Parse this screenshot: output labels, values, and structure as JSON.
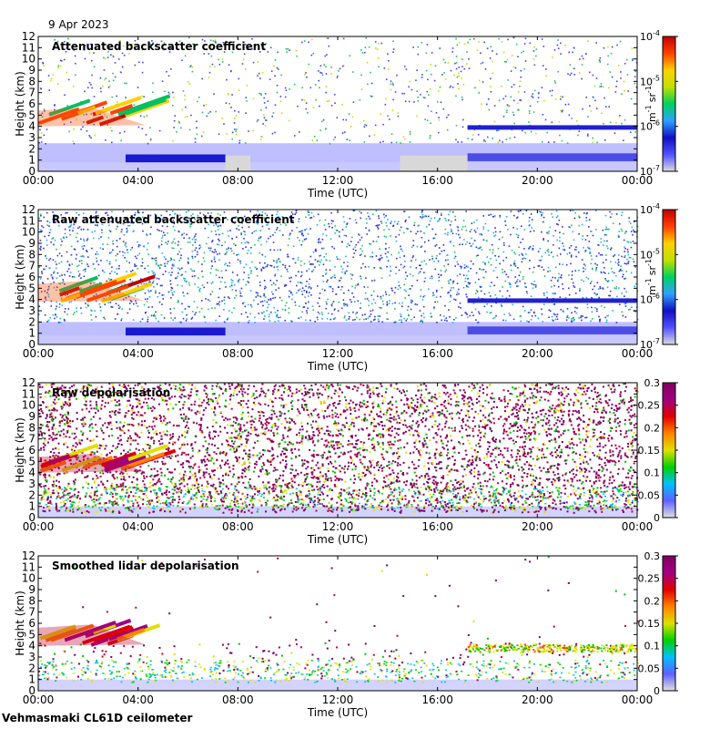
{
  "date_label": "9 Apr 2023",
  "site_label": "Vehmasmaki CL61D ceilometer",
  "chart_data": [
    {
      "type": "heatmap",
      "title": "Attenuated backscatter coefficient",
      "xlabel": "Time (UTC)",
      "ylabel": "Height (km)",
      "x_ticks": [
        "00:00",
        "04:00",
        "08:00",
        "12:00",
        "16:00",
        "20:00",
        "00:00"
      ],
      "y_ticks": [
        "0",
        "1",
        "2",
        "3",
        "4",
        "5",
        "6",
        "7",
        "8",
        "9",
        "10",
        "11",
        "12"
      ],
      "ylim": [
        0,
        12
      ],
      "colorbar": {
        "scale": "log",
        "range": [
          1e-07,
          0.0001
        ],
        "tick_labels": [
          {
            "base": "10",
            "exp": "-7"
          },
          {
            "base": "10",
            "exp": "-6"
          },
          {
            "base": "10",
            "exp": "-5"
          },
          {
            "base": "10",
            "exp": "-4"
          }
        ],
        "unit": {
          "a": "m",
          "ae": "-1",
          "b": "sr",
          "be": "-1"
        }
      },
      "features": {
        "cloud_layer_km": [
          4,
          6
        ],
        "cloud_end_hour": 4.3,
        "boundary_layer_top_km": 2.5,
        "data_gaps_hours": [
          [
            7.5,
            8.5
          ],
          [
            14.5,
            17.2
          ]
        ]
      }
    },
    {
      "type": "heatmap",
      "title": "Raw attenuated backscatter coefficient",
      "xlabel": "Time (UTC)",
      "ylabel": "Height (km)",
      "x_ticks": [
        "00:00",
        "04:00",
        "08:00",
        "12:00",
        "16:00",
        "20:00",
        "00:00"
      ],
      "y_ticks": [
        "0",
        "1",
        "2",
        "3",
        "4",
        "5",
        "6",
        "7",
        "8",
        "9",
        "10",
        "11",
        "12"
      ],
      "ylim": [
        0,
        12
      ],
      "colorbar": {
        "scale": "log",
        "range": [
          1e-07,
          0.0001
        ],
        "tick_labels": [
          {
            "base": "10",
            "exp": "-7"
          },
          {
            "base": "10",
            "exp": "-6"
          },
          {
            "base": "10",
            "exp": "-5"
          },
          {
            "base": "10",
            "exp": "-4"
          }
        ],
        "unit": {
          "a": "m",
          "ae": "-1",
          "b": "sr",
          "be": "-1"
        }
      },
      "features": {
        "cloud_layer_km": [
          3.8,
          6
        ],
        "cloud_end_hour": 4.2,
        "boundary_layer_top_km": 2.0
      }
    },
    {
      "type": "heatmap",
      "title": "Raw depolarisation",
      "xlabel": "Time (UTC)",
      "ylabel": "Height (km)",
      "x_ticks": [
        "00:00",
        "04:00",
        "08:00",
        "12:00",
        "16:00",
        "20:00",
        "00:00"
      ],
      "y_ticks": [
        "0",
        "1",
        "2",
        "3",
        "4",
        "5",
        "6",
        "7",
        "8",
        "9",
        "10",
        "11",
        "12"
      ],
      "ylim": [
        0,
        12
      ],
      "colorbar": {
        "scale": "linear",
        "range": [
          0,
          0.3
        ],
        "tick_labels": [
          "0",
          "0.05",
          "0.1",
          "0.15",
          "0.2",
          "0.25",
          "0.3"
        ]
      },
      "features": {
        "cloud_layer_km": [
          4,
          6
        ],
        "cloud_end_hour": 4.3
      }
    },
    {
      "type": "heatmap",
      "title": "Smoothed lidar depolarisation",
      "xlabel": "Time (UTC)",
      "ylabel": "Height (km)",
      "x_ticks": [
        "00:00",
        "04:00",
        "08:00",
        "12:00",
        "16:00",
        "20:00",
        "00:00"
      ],
      "y_ticks": [
        "0",
        "1",
        "2",
        "3",
        "4",
        "5",
        "6",
        "7",
        "8",
        "9",
        "10",
        "11",
        "12"
      ],
      "ylim": [
        0,
        12
      ],
      "colorbar": {
        "scale": "linear",
        "range": [
          0,
          0.3
        ],
        "tick_labels": [
          "0",
          "0.05",
          "0.1",
          "0.15",
          "0.2",
          "0.25",
          "0.3"
        ]
      },
      "features": {
        "cloud_layer_km": [
          4,
          6.2
        ],
        "cloud_end_hour": 4.3,
        "aerosol_layer_km": [
          3.5,
          4.2
        ],
        "aerosol_start_hour": 17.2
      }
    }
  ]
}
